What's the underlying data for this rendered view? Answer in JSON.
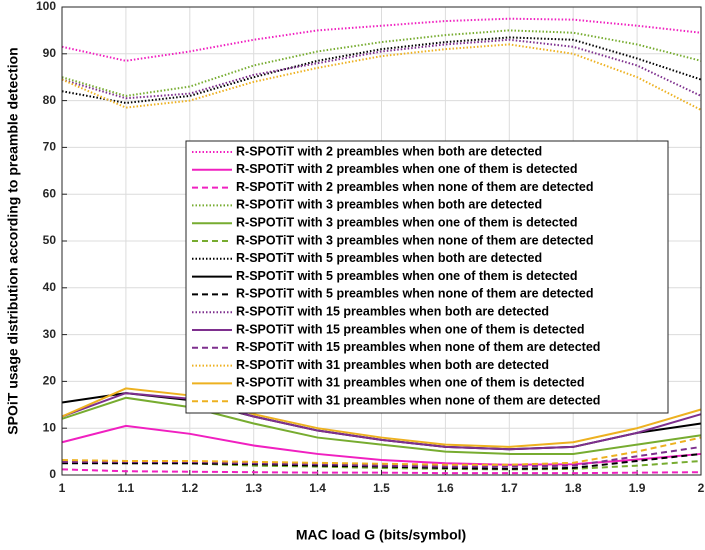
{
  "chart_data": {
    "type": "line",
    "xlabel": "MAC load G (bits/symbol)",
    "ylabel": "SPOiT usage distribution according to preamble detection",
    "x": [
      1,
      1.1,
      1.2,
      1.3,
      1.4,
      1.5,
      1.6,
      1.7,
      1.8,
      1.9,
      2
    ],
    "xlim": [
      1,
      2
    ],
    "xticks": [
      1,
      1.1,
      1.2,
      1.3,
      1.4,
      1.5,
      1.6,
      1.7,
      1.8,
      1.9,
      2
    ],
    "ylim": [
      0,
      100
    ],
    "yticks": [
      0,
      10,
      20,
      30,
      40,
      50,
      60,
      70,
      80,
      90,
      100
    ],
    "grid": true,
    "legend": "center",
    "series": [
      {
        "name": "R-SPOTiT with 2 preambles when both are detected",
        "color": "#f020c0",
        "dash": "dotted",
        "values": [
          91.5,
          88.5,
          90.5,
          93,
          95,
          96,
          97,
          97.5,
          97.3,
          96,
          94.5
        ]
      },
      {
        "name": "R-SPOTiT with 2 preambles when one of them is detected",
        "color": "#f020c0",
        "dash": "solid",
        "values": [
          7,
          10.5,
          8.8,
          6.3,
          4.5,
          3.2,
          2.5,
          2.2,
          2.3,
          3.3,
          4.5
        ]
      },
      {
        "name": "R-SPOTiT with 2 preambles when none of them are detected",
        "color": "#f020c0",
        "dash": "dashed",
        "values": [
          1.2,
          0.8,
          0.7,
          0.6,
          0.5,
          0.5,
          0.4,
          0.4,
          0.4,
          0.5,
          0.6
        ]
      },
      {
        "name": "R-SPOTiT with 3 preambles when both are detected",
        "color": "#77ac30",
        "dash": "dotted",
        "values": [
          85,
          81,
          83,
          87.5,
          90.5,
          92.5,
          94,
          95,
          94.5,
          92,
          88.5
        ]
      },
      {
        "name": "R-SPOTiT with 3 preambles when one of them is detected",
        "color": "#77ac30",
        "dash": "solid",
        "values": [
          12,
          16.5,
          14.5,
          11,
          8,
          6.5,
          5,
          4.5,
          4.5,
          6.5,
          8.5
        ]
      },
      {
        "name": "R-SPOTiT with 3 preambles when none of them are detected",
        "color": "#77ac30",
        "dash": "dashed",
        "values": [
          3,
          2.5,
          2.5,
          2,
          1.8,
          1.5,
          1.3,
          1.2,
          1.3,
          2,
          3
        ]
      },
      {
        "name": "R-SPOTiT with 5 preambles when both are detected",
        "color": "#000000",
        "dash": "dotted",
        "values": [
          82,
          79.5,
          81,
          85,
          88.5,
          91,
          92.5,
          93.5,
          93,
          89,
          84.5
        ]
      },
      {
        "name": "R-SPOTiT with 5 preambles when one of them is detected",
        "color": "#000000",
        "dash": "solid",
        "values": [
          15.5,
          17.5,
          16,
          12.5,
          9.5,
          7.5,
          6,
          5.5,
          6,
          9,
          11
        ]
      },
      {
        "name": "R-SPOTiT with 5 preambles when none of them are detected",
        "color": "#000000",
        "dash": "dashed",
        "values": [
          2.5,
          2.5,
          2.5,
          2.3,
          2,
          1.8,
          1.5,
          1.3,
          1.5,
          3,
          4.5
        ]
      },
      {
        "name": "R-SPOTiT with 15 preambles when both are detected",
        "color": "#7e2f8e",
        "dash": "dotted",
        "values": [
          84.5,
          80.5,
          81.5,
          85.5,
          88,
          90.5,
          92,
          93,
          91.5,
          87.5,
          81
        ]
      },
      {
        "name": "R-SPOTiT with 15 preambles when one of them is detected",
        "color": "#7e2f8e",
        "dash": "solid",
        "values": [
          12.5,
          17.5,
          16.3,
          12.5,
          9.5,
          7.5,
          6,
          5.5,
          6,
          9,
          13
        ]
      },
      {
        "name": "R-SPOTiT with 15 preambles when none of them are detected",
        "color": "#7e2f8e",
        "dash": "dashed",
        "values": [
          2.8,
          2.8,
          2.8,
          2.5,
          2.3,
          2,
          1.8,
          1.8,
          2,
          4,
          6
        ]
      },
      {
        "name": "R-SPOTiT with 31 preambles when both are detected",
        "color": "#edb120",
        "dash": "dotted",
        "values": [
          84.5,
          78.5,
          80,
          84,
          87,
          89.5,
          91,
          92,
          90,
          85,
          78
        ]
      },
      {
        "name": "R-SPOTiT with 31 preambles when one of them is detected",
        "color": "#edb120",
        "dash": "solid",
        "values": [
          12.5,
          18.5,
          17,
          13,
          10,
          8,
          6.5,
          6,
          7,
          10,
          14
        ]
      },
      {
        "name": "R-SPOTiT with 31 preambles when none of them are detected",
        "color": "#edb120",
        "dash": "dashed",
        "values": [
          3.2,
          3,
          3,
          2.8,
          2.6,
          2.4,
          2.2,
          2.2,
          2.6,
          5,
          8
        ]
      }
    ]
  }
}
